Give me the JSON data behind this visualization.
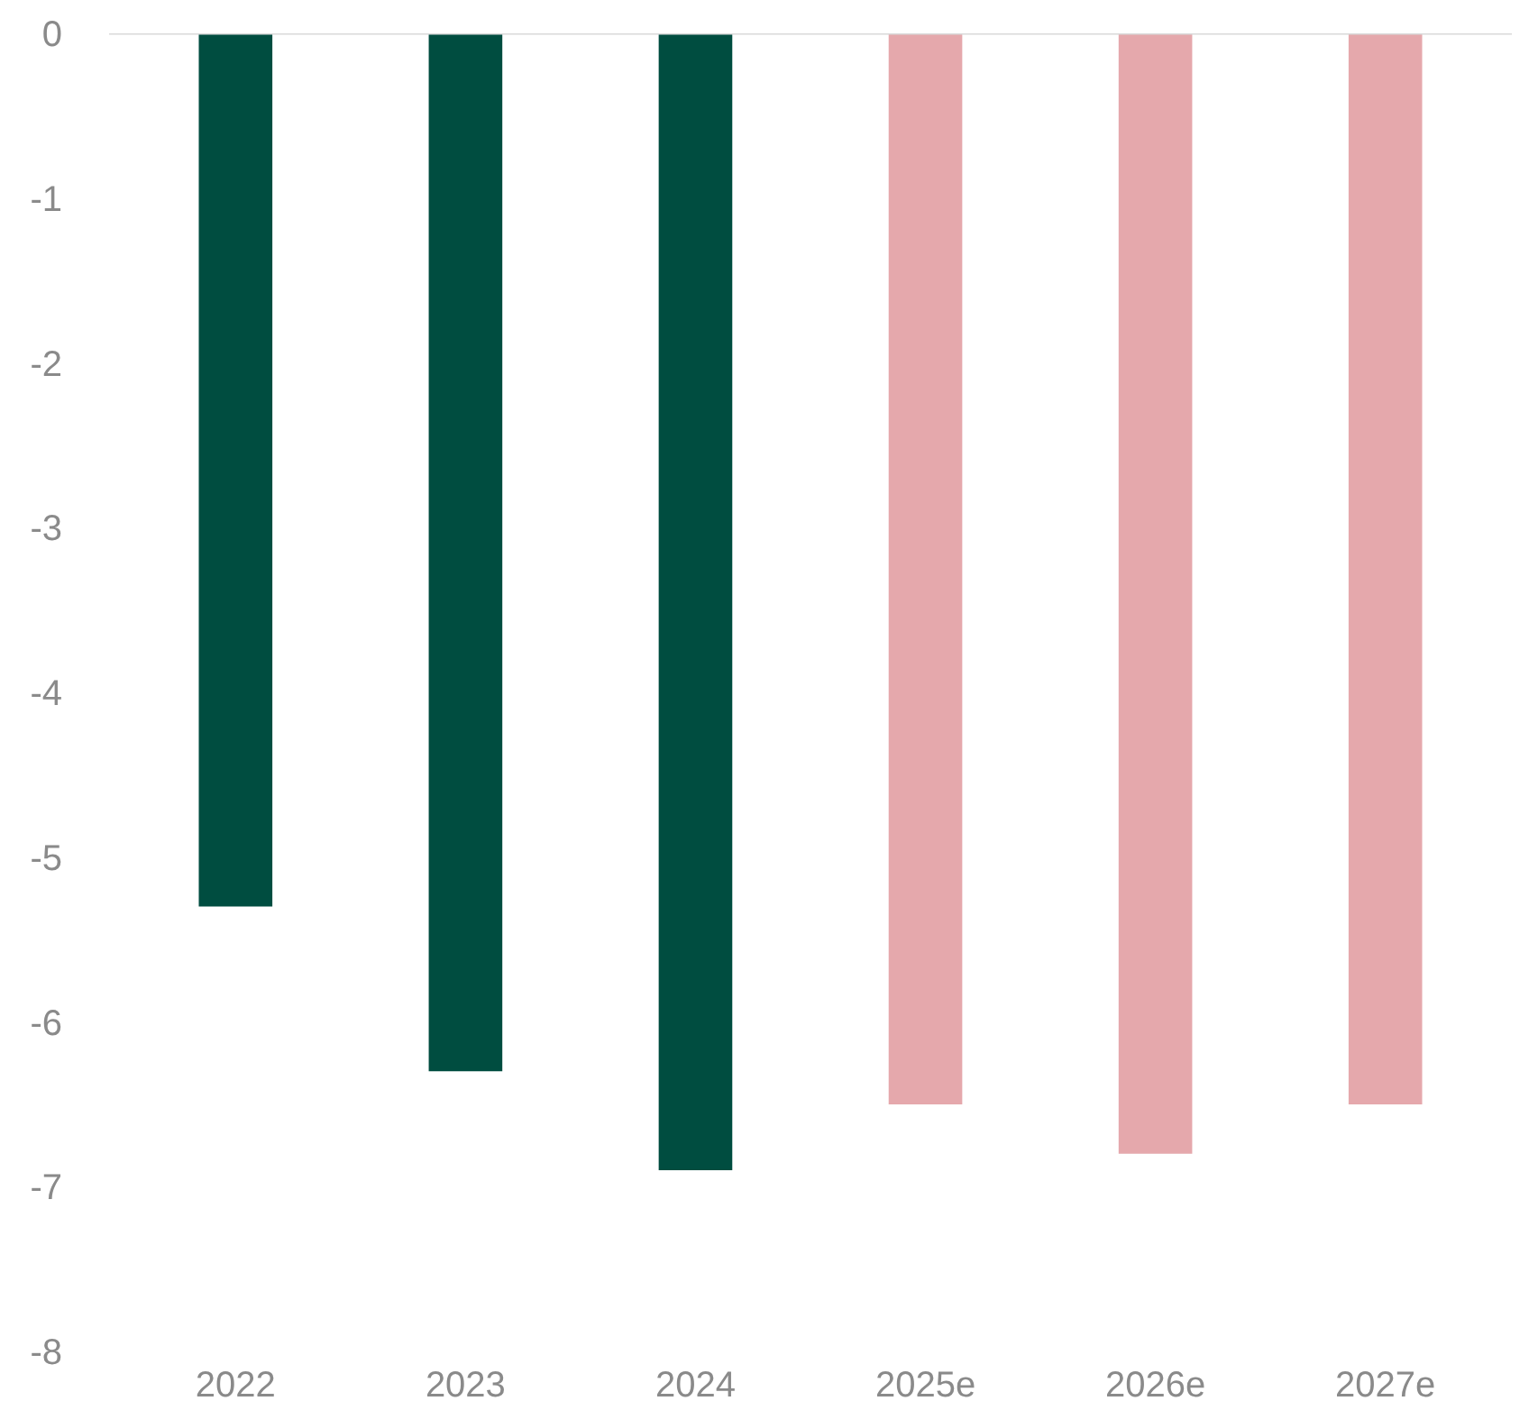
{
  "chart_data": {
    "type": "bar",
    "categories": [
      "2022",
      "2023",
      "2024",
      "2025e",
      "2026e",
      "2027e"
    ],
    "values": [
      -5.3,
      -6.3,
      -6.9,
      -6.5,
      -6.8,
      -6.5
    ],
    "colors": [
      "#004d40",
      "#004d40",
      "#004d40",
      "#e5a8ac",
      "#e5a8ac",
      "#e5a8ac"
    ],
    "ylim": [
      -8,
      0
    ],
    "yticks": [
      0,
      -1,
      -2,
      -3,
      -4,
      -5,
      -6,
      -7,
      -8
    ],
    "grid": false,
    "ref_lines": [
      {
        "axis": "y",
        "value": 0,
        "color": "#d9d9d9"
      }
    ]
  }
}
